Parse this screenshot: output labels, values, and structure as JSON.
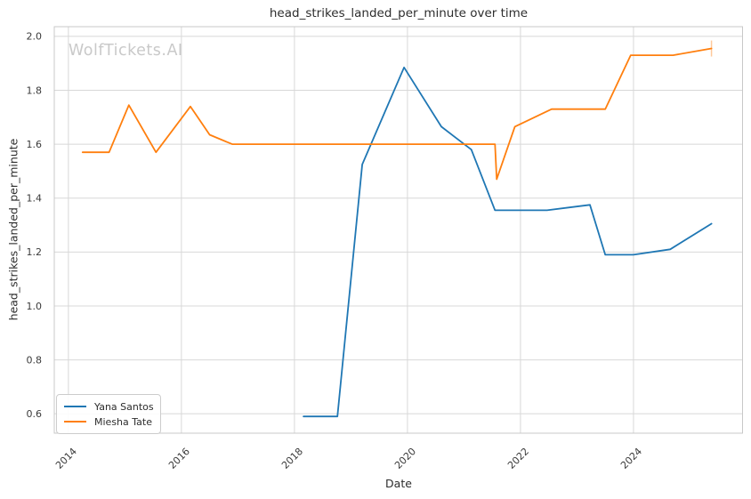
{
  "watermark": "WolfTickets.AI",
  "colors": {
    "background": "#ffffff",
    "grid": "#d8d8d8",
    "spine": "#c8c8c8",
    "text": "#2d2d2d",
    "watermark": "#c9c9c9",
    "series_blue": "#1f77b4",
    "series_orange": "#ff7f0e",
    "end_tick": "#ffc08a"
  },
  "chart_data": {
    "type": "line",
    "title": "head_strikes_landed_per_minute over time",
    "xlabel": "Date",
    "ylabel": "head_strikes_landed_per_minute",
    "grid": true,
    "legend_position": "lower left",
    "xlim": [
      2013.75,
      2025.93
    ],
    "ylim": [
      0.528,
      2.036
    ],
    "x_ticks": [
      2014,
      2016,
      2018,
      2020,
      2022,
      2024
    ],
    "y_ticks": [
      0.6,
      0.8,
      1.0,
      1.2,
      1.4,
      1.6,
      1.8,
      2.0
    ],
    "series": [
      {
        "name": "Yana Santos",
        "color": "#1f77b4",
        "points": [
          [
            2018.16,
            0.59
          ],
          [
            2018.76,
            0.59
          ],
          [
            2019.2,
            1.525
          ],
          [
            2019.94,
            1.885
          ],
          [
            2020.6,
            1.665
          ],
          [
            2021.13,
            1.58
          ],
          [
            2021.55,
            1.355
          ],
          [
            2022.47,
            1.355
          ],
          [
            2023.23,
            1.375
          ],
          [
            2023.5,
            1.19
          ],
          [
            2024.0,
            1.19
          ],
          [
            2024.65,
            1.21
          ],
          [
            2025.38,
            1.305
          ]
        ]
      },
      {
        "name": "Miesha Tate",
        "color": "#ff7f0e",
        "points": [
          [
            2014.25,
            1.57
          ],
          [
            2014.72,
            1.57
          ],
          [
            2015.07,
            1.745
          ],
          [
            2015.55,
            1.57
          ],
          [
            2016.16,
            1.74
          ],
          [
            2016.5,
            1.635
          ],
          [
            2016.9,
            1.6
          ],
          [
            2021.55,
            1.6
          ],
          [
            2021.58,
            1.47
          ],
          [
            2021.9,
            1.665
          ],
          [
            2022.55,
            1.73
          ],
          [
            2023.5,
            1.73
          ],
          [
            2023.95,
            1.93
          ],
          [
            2024.7,
            1.93
          ],
          [
            2025.38,
            1.955
          ]
        ]
      }
    ],
    "end_tick": {
      "x": 2025.38,
      "y": 1.955,
      "half_height": 9
    }
  },
  "legend": {
    "items": [
      {
        "label": "Yana Santos",
        "color": "#1f77b4"
      },
      {
        "label": "Miesha Tate",
        "color": "#ff7f0e"
      }
    ]
  }
}
